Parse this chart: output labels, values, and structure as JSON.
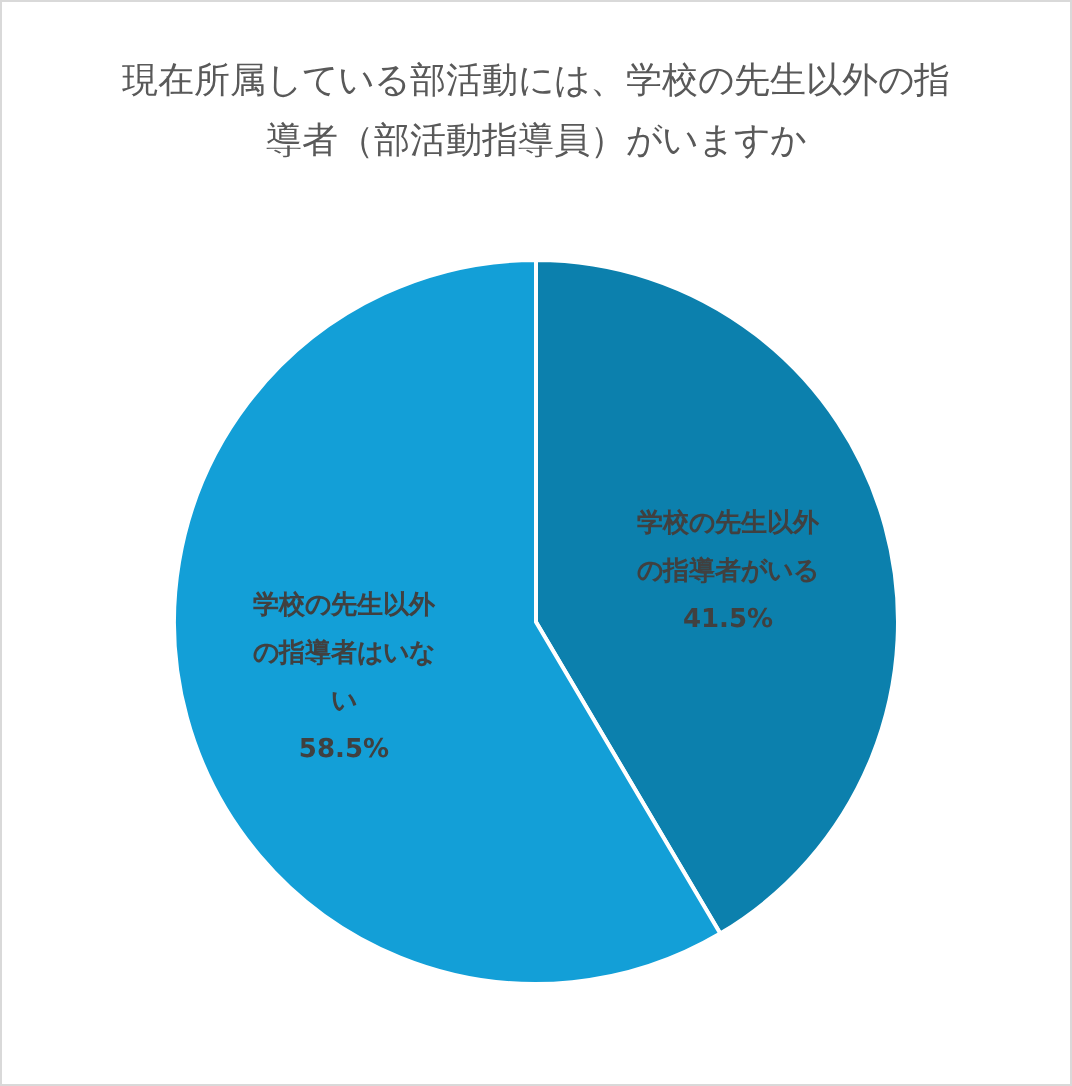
{
  "chart_data": {
    "type": "pie",
    "title": "現在所属している部活動には、学校の先生以外の指導者（部活動指導員）がいますか",
    "categories": [
      "学校の先生以外の指導者がいる",
      "学校の先生以外の指導者はいない"
    ],
    "values": [
      41.5,
      58.5
    ],
    "colors": [
      "#0c80ad",
      "#139fd7"
    ],
    "value_labels": [
      "41.5%",
      "58.5%"
    ]
  }
}
